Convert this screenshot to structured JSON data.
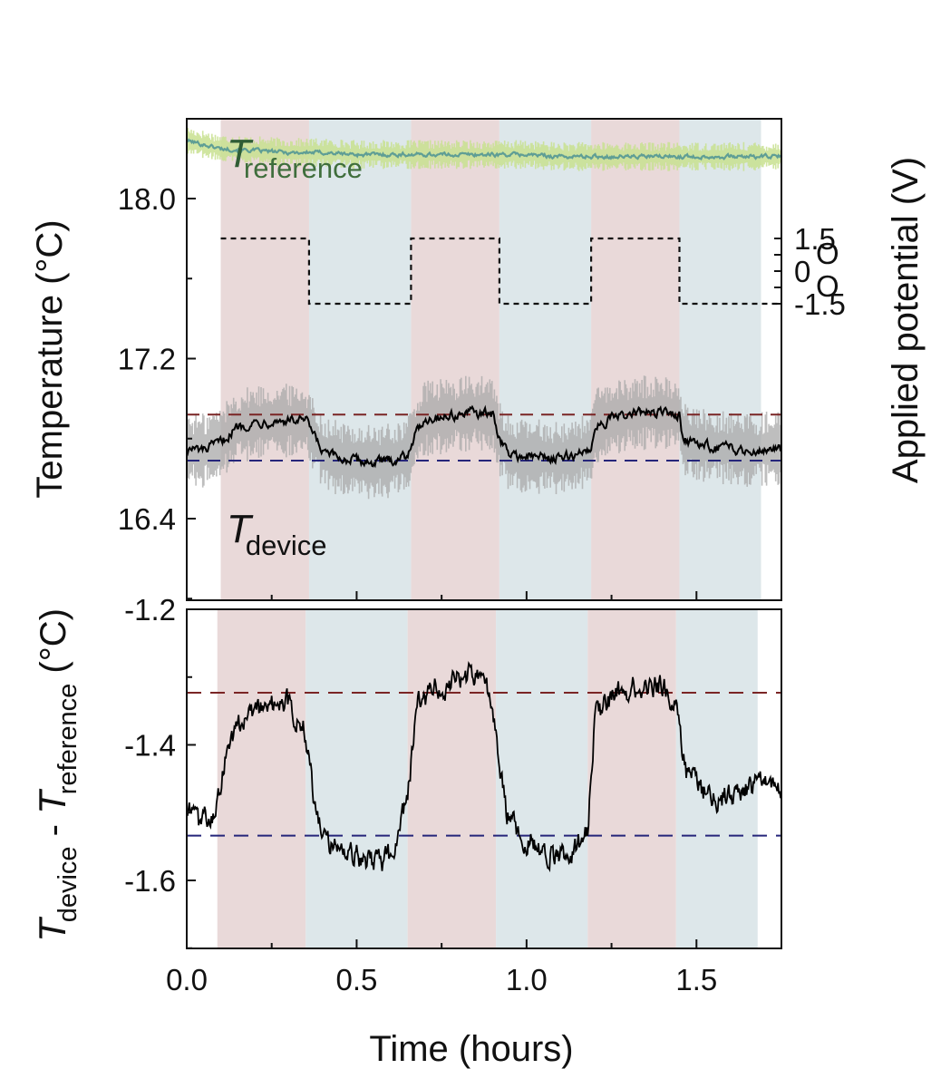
{
  "chart_data": [
    {
      "type": "line",
      "panel": "top",
      "ylabel": "Temperature (°C)",
      "y2label": "Applied potential (V)",
      "xlim": [
        0.0,
        1.75
      ],
      "ylim": [
        15.9,
        18.4
      ],
      "yticks": [
        "18.0",
        "17.2",
        "16.4"
      ],
      "y2ticks": [
        "1.5",
        "0",
        "-1.5"
      ],
      "y2_unlabeled_mid_ticks": [
        "O",
        "O"
      ],
      "grid": false,
      "legend": "none",
      "shaded_intervals": [
        {
          "x0": 0.1,
          "x1": 0.36,
          "kind": "positive"
        },
        {
          "x0": 0.36,
          "x1": 0.66,
          "kind": "negative"
        },
        {
          "x0": 0.66,
          "x1": 0.92,
          "kind": "positive"
        },
        {
          "x0": 0.92,
          "x1": 1.19,
          "kind": "negative"
        },
        {
          "x0": 1.19,
          "x1": 1.45,
          "kind": "positive"
        },
        {
          "x0": 1.45,
          "x1": 1.69,
          "kind": "negative"
        }
      ],
      "annotations": [
        {
          "main": "T",
          "sub": "reference",
          "x": 0.13,
          "y": 18.15
        },
        {
          "main": "T",
          "sub": "device",
          "x": 0.13,
          "y": 16.32
        }
      ],
      "reference_lines": [
        {
          "y": 16.92,
          "color": "#7a2525"
        },
        {
          "y": 16.69,
          "color": "#25257a"
        }
      ],
      "series": [
        {
          "name": "T reference",
          "color": "#5f9e95",
          "band_color": "#c8e08f",
          "band_halfwidth": 0.05,
          "x": [
            0.0,
            0.05,
            0.1,
            0.2,
            0.3,
            0.4,
            0.5,
            0.6,
            0.7,
            0.8,
            0.9,
            1.0,
            1.1,
            1.2,
            1.3,
            1.4,
            1.5,
            1.6,
            1.75
          ],
          "y": [
            18.29,
            18.27,
            18.25,
            18.24,
            18.23,
            18.23,
            18.22,
            18.22,
            18.22,
            18.22,
            18.22,
            18.22,
            18.21,
            18.21,
            18.21,
            18.21,
            18.21,
            18.21,
            18.21
          ]
        },
        {
          "name": "T device",
          "color": "#000000",
          "band_color": "#a8a8a8",
          "band_halfwidth": 0.13,
          "x": [
            0.0,
            0.05,
            0.1,
            0.15,
            0.2,
            0.25,
            0.3,
            0.35,
            0.36,
            0.4,
            0.45,
            0.5,
            0.55,
            0.6,
            0.65,
            0.66,
            0.7,
            0.75,
            0.8,
            0.85,
            0.9,
            0.92,
            0.95,
            1.0,
            1.05,
            1.1,
            1.15,
            1.19,
            1.2,
            1.25,
            1.3,
            1.35,
            1.4,
            1.45,
            1.46,
            1.5,
            1.55,
            1.6,
            1.65,
            1.7,
            1.75
          ],
          "y": [
            16.75,
            16.74,
            16.78,
            16.86,
            16.88,
            16.89,
            16.89,
            16.89,
            16.86,
            16.73,
            16.7,
            16.69,
            16.68,
            16.69,
            16.72,
            16.78,
            16.9,
            16.91,
            16.92,
            16.93,
            16.92,
            16.8,
            16.72,
            16.71,
            16.71,
            16.7,
            16.72,
            16.75,
            16.86,
            16.9,
            16.92,
            16.93,
            16.93,
            16.92,
            16.8,
            16.77,
            16.76,
            16.75,
            16.74,
            16.75,
            16.75
          ]
        },
        {
          "name": "Applied potential",
          "axis": "y2",
          "style": "dotted-step",
          "color": "#111111",
          "x": [
            0.1,
            0.36,
            0.36,
            0.66,
            0.66,
            0.92,
            0.92,
            1.19,
            1.19,
            1.45,
            1.45,
            1.75
          ],
          "y": [
            1.5,
            1.5,
            -1.5,
            -1.5,
            1.5,
            1.5,
            -1.5,
            -1.5,
            1.5,
            1.5,
            -1.5,
            -1.5
          ]
        }
      ]
    },
    {
      "type": "line",
      "panel": "bottom",
      "title": "",
      "xlabel": "Time (hours)",
      "ylabel": {
        "t1": "T",
        "s1": "device",
        "mid": " - ",
        "t2": "T",
        "s2": "reference",
        "unit": " (°C)"
      },
      "xlim": [
        0.0,
        1.75
      ],
      "ylim": [
        -1.7,
        -1.2
      ],
      "xticks": [
        "0.0",
        "0.5",
        "1.0",
        "1.5"
      ],
      "yticks": [
        "-1.2",
        "-1.4",
        "-1.6"
      ],
      "grid": false,
      "legend": "none",
      "shaded_intervals": [
        {
          "x0": 0.09,
          "x1": 0.35,
          "kind": "positive"
        },
        {
          "x0": 0.35,
          "x1": 0.65,
          "kind": "negative"
        },
        {
          "x0": 0.65,
          "x1": 0.91,
          "kind": "positive"
        },
        {
          "x0": 0.91,
          "x1": 1.18,
          "kind": "negative"
        },
        {
          "x0": 1.18,
          "x1": 1.44,
          "kind": "positive"
        },
        {
          "x0": 1.44,
          "x1": 1.68,
          "kind": "negative"
        }
      ],
      "reference_lines": [
        {
          "y": -1.323,
          "color": "#7a2525"
        },
        {
          "y": -1.534,
          "color": "#25257a"
        }
      ],
      "series": [
        {
          "name": "T device - T reference",
          "color": "#000000",
          "x": [
            0.0,
            0.04,
            0.09,
            0.12,
            0.15,
            0.2,
            0.25,
            0.3,
            0.35,
            0.38,
            0.42,
            0.47,
            0.52,
            0.57,
            0.62,
            0.65,
            0.68,
            0.73,
            0.78,
            0.83,
            0.88,
            0.91,
            0.94,
            0.98,
            1.03,
            1.08,
            1.13,
            1.18,
            1.2,
            1.25,
            1.3,
            1.35,
            1.4,
            1.44,
            1.47,
            1.52,
            1.57,
            1.62,
            1.67,
            1.72,
            1.75
          ],
          "y": [
            -1.5,
            -1.52,
            -1.49,
            -1.4,
            -1.37,
            -1.35,
            -1.34,
            -1.34,
            -1.38,
            -1.5,
            -1.54,
            -1.56,
            -1.57,
            -1.58,
            -1.55,
            -1.47,
            -1.34,
            -1.32,
            -1.31,
            -1.3,
            -1.3,
            -1.39,
            -1.5,
            -1.53,
            -1.55,
            -1.56,
            -1.56,
            -1.53,
            -1.36,
            -1.33,
            -1.32,
            -1.31,
            -1.31,
            -1.34,
            -1.44,
            -1.47,
            -1.48,
            -1.47,
            -1.46,
            -1.46,
            -1.46
          ]
        }
      ]
    }
  ],
  "colors": {
    "positive_shade": "#e9d9d9",
    "negative_shade": "#dde7ea",
    "high_ref_line": "#7a2525",
    "low_ref_line": "#25257a",
    "ref_band": "#c8e08f",
    "ref_line": "#5f9e95",
    "device_band": "#a8a8a8",
    "trace": "#000000"
  }
}
